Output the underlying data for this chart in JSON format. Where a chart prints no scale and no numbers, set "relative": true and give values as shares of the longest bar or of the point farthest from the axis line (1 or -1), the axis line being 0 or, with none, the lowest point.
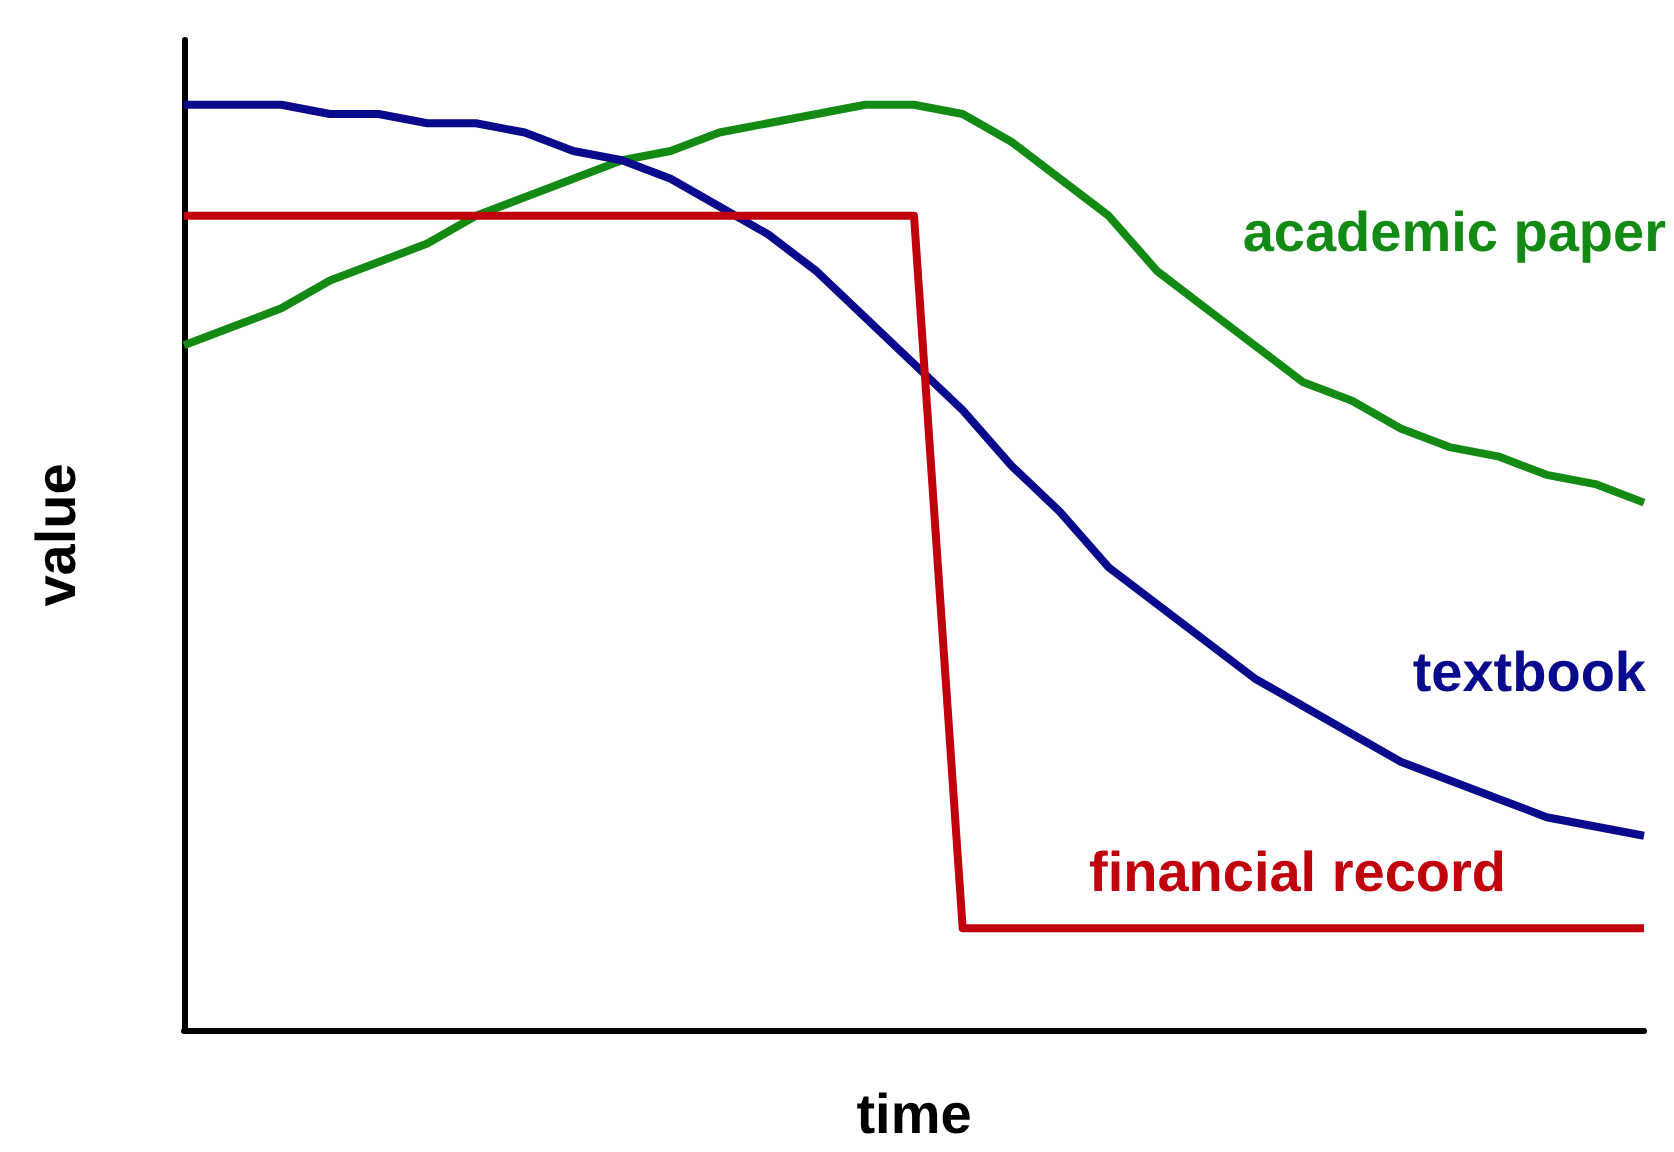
{
  "chart_data": {
    "type": "line",
    "relative": true,
    "xlabel": "time",
    "ylabel": "value",
    "legend": false,
    "grid": false,
    "marker": "none",
    "line_style": "solid",
    "categories": [
      null,
      null,
      null,
      null,
      null,
      null,
      null,
      null,
      null,
      null,
      null,
      null,
      null,
      null,
      null,
      null,
      null,
      null,
      null,
      null,
      null,
      null,
      null,
      null,
      null,
      null,
      null,
      null,
      null,
      null,
      null
    ],
    "series": [
      {
        "name": "academic paper",
        "color": "#138a13",
        "values": [
          0.74,
          0.76,
          0.78,
          0.81,
          0.83,
          0.85,
          0.88,
          0.9,
          0.92,
          0.94,
          0.95,
          0.97,
          0.98,
          0.99,
          1.0,
          1.0,
          0.99,
          0.96,
          0.92,
          0.88,
          0.82,
          0.78,
          0.74,
          0.7,
          0.68,
          0.65,
          0.63,
          0.62,
          0.6,
          0.59,
          0.57
        ]
      },
      {
        "name": "textbook",
        "color": "#0a0a8c",
        "values": [
          1,
          1,
          1.0,
          0.99,
          0.99,
          0.98,
          0.98,
          0.97,
          0.95,
          0.94,
          0.92,
          0.89,
          0.86,
          0.82,
          0.77,
          0.72,
          0.67,
          0.61,
          0.56,
          0.5,
          0.46,
          0.42,
          0.38,
          0.35,
          0.32,
          0.29,
          0.27,
          0.25,
          0.23,
          0.22,
          0.21
        ]
      },
      {
        "name": "financial record",
        "color": "#c0000c",
        "values": [
          0.88,
          0.88,
          0.88,
          0.88,
          0.88,
          0.88,
          0.88,
          0.88,
          0.88,
          0.88,
          0.88,
          0.88,
          0.88,
          0.88,
          0.88,
          0.88,
          0.11,
          0.11,
          0.11,
          0.11,
          0.11,
          0.11,
          0.11,
          0.11,
          0.11,
          0.11,
          0.11,
          0.11,
          0.11,
          0.11,
          0.11
        ]
      }
    ]
  }
}
